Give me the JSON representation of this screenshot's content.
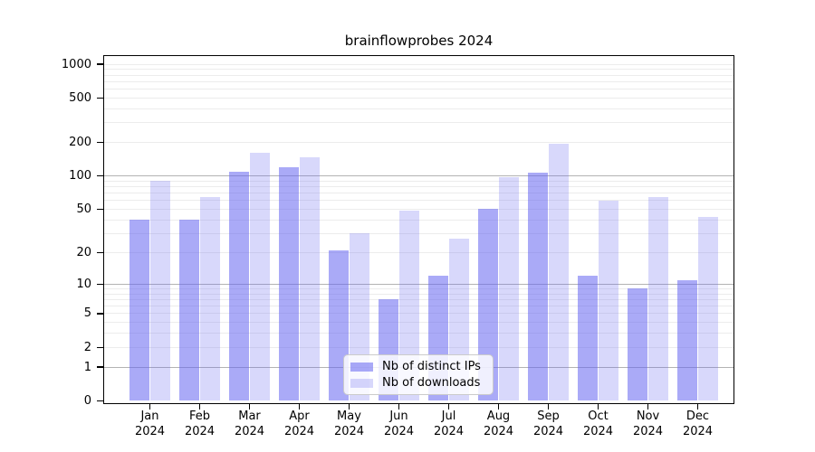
{
  "chart_data": {
    "type": "bar",
    "title": "brainflowprobes 2024",
    "x_year": "2024",
    "categories": [
      "Jan",
      "Feb",
      "Mar",
      "Apr",
      "May",
      "Jun",
      "Jul",
      "Aug",
      "Sep",
      "Oct",
      "Nov",
      "Dec"
    ],
    "series": [
      {
        "name": "Nb of distinct IPs",
        "color": "rgba(100,100,240,0.55)",
        "values": [
          40,
          40,
          109,
          120,
          21,
          7,
          12,
          51,
          108,
          12,
          9,
          11
        ]
      },
      {
        "name": "Nb of downloads",
        "color": "rgba(100,100,240,0.25)",
        "values": [
          91,
          65,
          161,
          148,
          30,
          49,
          27,
          97,
          195,
          60,
          65,
          43
        ]
      }
    ],
    "yscale": "log10(1+x)",
    "yticks": [
      0,
      1,
      2,
      5,
      10,
      20,
      50,
      100,
      200,
      500,
      1000
    ],
    "ylim": [
      0,
      1000
    ],
    "grid": {
      "major_lines": [
        1,
        10,
        100
      ],
      "major_color": "#b3b3b3",
      "minor_color": "#ececec"
    },
    "legend_position": "lower center inside",
    "axis_color": "#000000",
    "background": "#ffffff"
  }
}
